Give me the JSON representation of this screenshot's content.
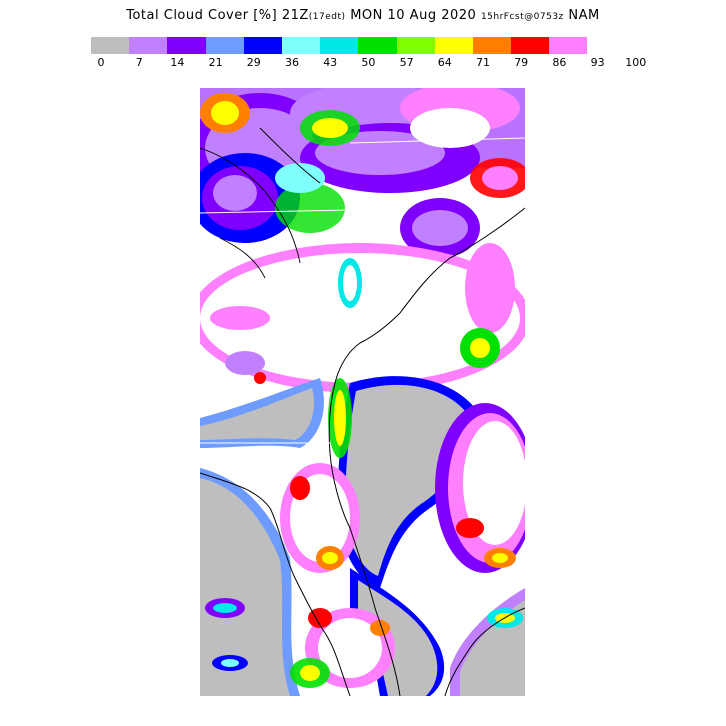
{
  "title": {
    "main": "Total Cloud Cover [%] 21Z",
    "edt": "(17edt)",
    "date": "MON 10 Aug 2020",
    "fcst": "15hrFcst@0753z",
    "model": "NAM"
  },
  "legend": {
    "levels": [
      "0",
      "7",
      "14",
      "21",
      "29",
      "36",
      "43",
      "50",
      "57",
      "64",
      "71",
      "79",
      "86",
      "93",
      "100"
    ],
    "colors": [
      "#bebebe",
      "#c080ff",
      "#8000ff",
      "#6e9bff",
      "#0000ff",
      "#80ffff",
      "#00e8e8",
      "#00e000",
      "#80ff00",
      "#ffff00",
      "#ff8000",
      "#ff0000",
      "#ff80ff"
    ]
  },
  "map": {
    "background_color": "#ffffff",
    "clear_color": "#bebebe",
    "boundary_color": "#000000",
    "state_line_color": "#ffffff"
  }
}
